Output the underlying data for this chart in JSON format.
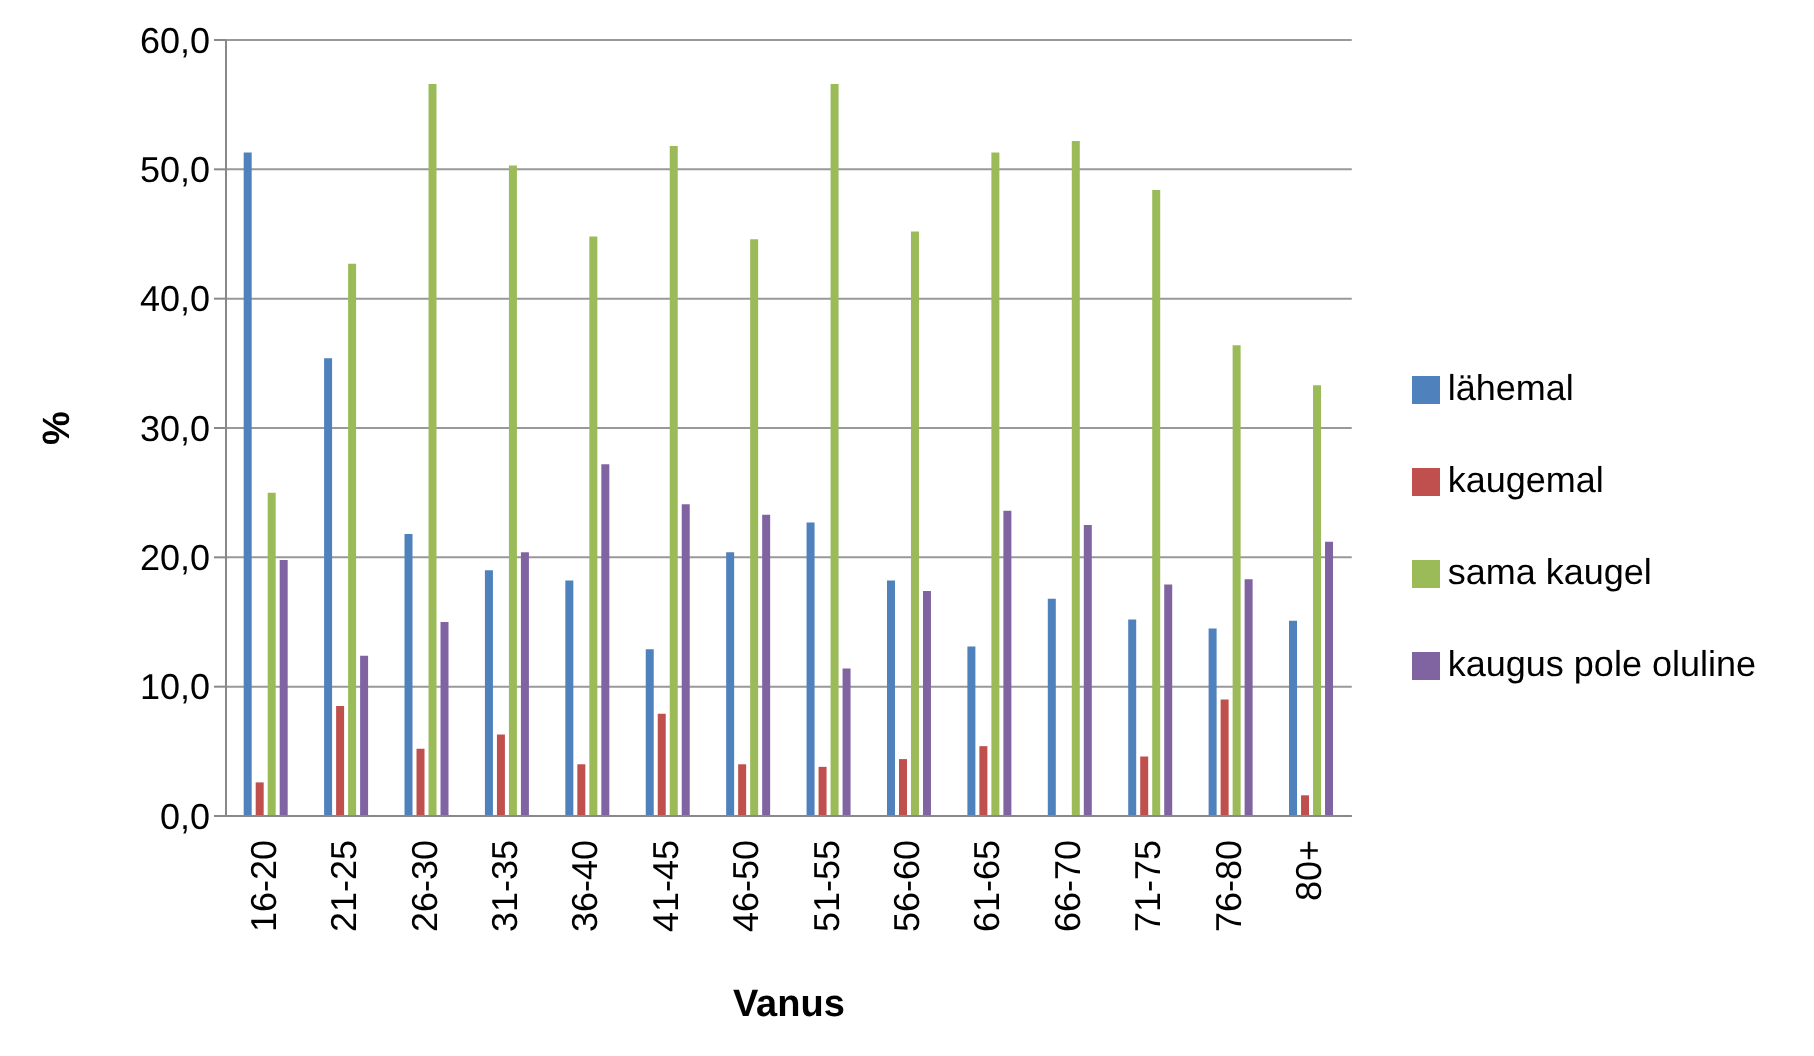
{
  "chart_data": {
    "type": "bar",
    "xlabel": "Vanus",
    "ylabel": "%",
    "categories": [
      "16-20",
      "21-25",
      "26-30",
      "31-35",
      "36-40",
      "41-45",
      "46-50",
      "51-55",
      "56-60",
      "61-65",
      "66-70",
      "71-75",
      "76-80",
      "80+"
    ],
    "series": [
      {
        "name": "lähemal",
        "color": "#4f81bd",
        "values": [
          51.3,
          35.4,
          21.8,
          19.0,
          18.2,
          12.9,
          20.4,
          22.7,
          18.2,
          13.1,
          16.8,
          15.2,
          14.5,
          15.1
        ]
      },
      {
        "name": "kaugemal",
        "color": "#c0504d",
        "values": [
          2.6,
          8.5,
          5.2,
          6.3,
          4.0,
          7.9,
          4.0,
          3.8,
          4.4,
          5.4,
          null,
          4.6,
          9.0,
          1.6
        ]
      },
      {
        "name": "sama kaugel",
        "color": "#9bbb59",
        "values": [
          25.0,
          42.7,
          56.6,
          50.3,
          44.8,
          51.8,
          44.6,
          56.6,
          45.2,
          51.3,
          52.2,
          48.4,
          36.4,
          33.3
        ]
      },
      {
        "name": "kaugus pole oluline",
        "color": "#8064a2",
        "values": [
          19.8,
          12.4,
          15.0,
          20.4,
          27.2,
          24.1,
          23.3,
          11.4,
          17.4,
          23.6,
          22.5,
          17.9,
          18.3,
          21.2
        ]
      }
    ],
    "ylim": [
      0,
      60
    ],
    "yticks": [
      {
        "value": 0,
        "label": "0,0"
      },
      {
        "value": 10,
        "label": "10,0"
      },
      {
        "value": 20,
        "label": "20,0"
      },
      {
        "value": 30,
        "label": "30,0"
      },
      {
        "value": 40,
        "label": "40,0"
      },
      {
        "value": 50,
        "label": "50,0"
      },
      {
        "value": 60,
        "label": "60,0"
      }
    ],
    "grid": "y",
    "legend": "right"
  }
}
